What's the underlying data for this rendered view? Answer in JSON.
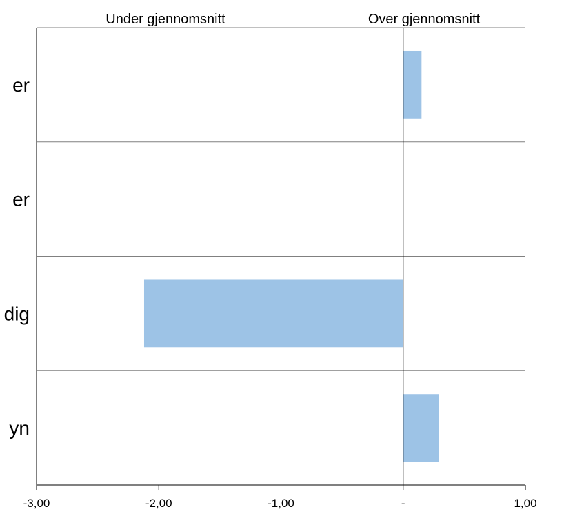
{
  "chart_data": {
    "type": "bar",
    "orientation": "horizontal",
    "header_left": "Under gjennomsnitt",
    "header_right": "Over gjennomsnitt",
    "category_fragments": [
      "er",
      "er",
      "dig",
      "yn"
    ],
    "values": [
      0.15,
      0,
      -2.12,
      0.29
    ],
    "xlim": [
      -3,
      1
    ],
    "x_ticks": [
      -3,
      -2,
      -1,
      0,
      1
    ],
    "x_tick_labels": [
      "-3,00",
      "-2,00",
      "-1,00",
      "-",
      "1,00"
    ],
    "bar_color": "#9DC3E6",
    "grid": "horizontal-separators"
  }
}
